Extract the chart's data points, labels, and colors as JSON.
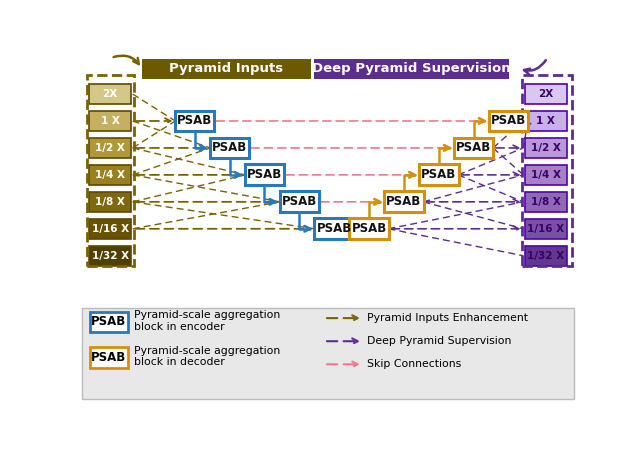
{
  "fig_width": 6.4,
  "fig_height": 4.5,
  "dpi": 100,
  "main_bg": "#ffffff",
  "legend_bg": "#e8e8e8",
  "header_olive": "#6b5a00",
  "header_purple": "#5b2d8e",
  "encoder_color": "#2878be",
  "decoder_color": "#d4900a",
  "olive": "#7a6200",
  "purple": "#5b2d8e",
  "pink": "#f07890",
  "input_labels": [
    "2X",
    "1 X",
    "1/2 X",
    "1/4 X",
    "1/8 X",
    "1/16 X",
    "1/32 X"
  ],
  "output_labels": [
    "2X",
    "1 X",
    "1/2 X",
    "1/4 X",
    "1/8 X",
    "1/16 X",
    "1/32 X"
  ],
  "input_colors": [
    "#d4c888",
    "#c4b060",
    "#b09838",
    "#988020",
    "#806810",
    "#685200",
    "#504000"
  ],
  "output_colors": [
    "#d8c8f0",
    "#c8b0e8",
    "#b898d8",
    "#a880c8",
    "#9068b8",
    "#7850a8",
    "#603890"
  ]
}
